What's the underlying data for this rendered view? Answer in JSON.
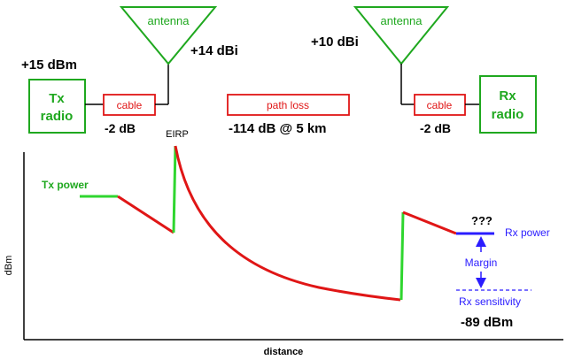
{
  "blocks": {
    "tx_power_value": "+15 dBm",
    "tx_radio_line1": "Tx",
    "tx_radio_line2": "radio",
    "tx_cable_label": "cable",
    "tx_cable_loss": "-2 dB",
    "tx_antenna_label": "antenna",
    "tx_antenna_gain": "+14 dBi",
    "path_loss_label": "path loss",
    "path_loss_value": "-114 dB @ 5 km",
    "rx_antenna_label": "antenna",
    "rx_antenna_gain": "+10 dBi",
    "rx_cable_label": "cable",
    "rx_cable_loss": "-2 dB",
    "rx_radio_line1": "Rx",
    "rx_radio_line2": "radio"
  },
  "graph": {
    "eirp_label": "EIRP",
    "tx_power_label": "Tx power",
    "unknown_label": "???",
    "rx_power_label": "Rx power",
    "margin_label": "Margin",
    "rx_sensitivity_label": "Rx sensitivity",
    "rx_sensitivity_value": "-89 dBm",
    "y_axis_label": "dBm",
    "x_axis_label": "distance"
  },
  "colors": {
    "green": "#1fa81f",
    "red": "#e01616",
    "blue": "#2a1cff"
  }
}
